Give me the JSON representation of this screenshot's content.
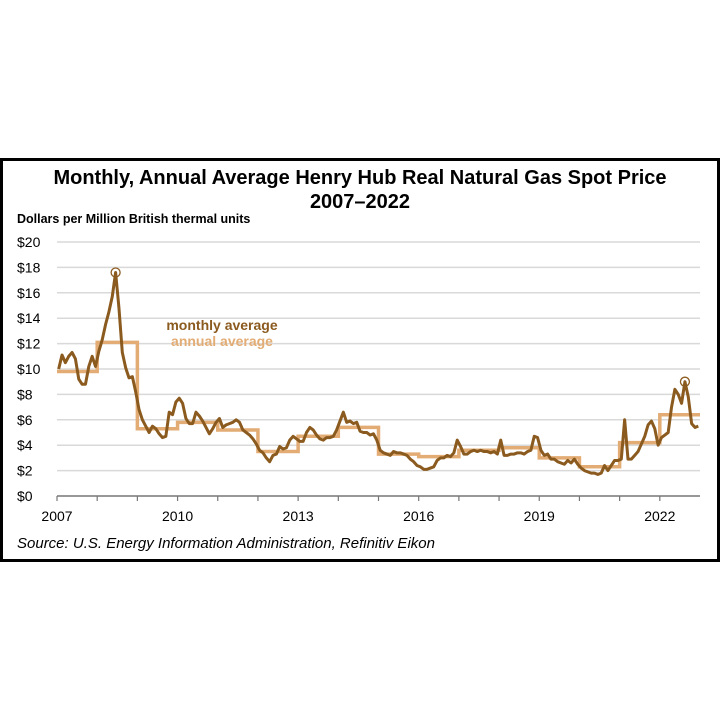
{
  "chart_data": {
    "type": "line",
    "title": "Monthly, Annual Average Henry Hub Real Natural Gas Spot Price",
    "subtitle": "2007–2022",
    "ylabel": "Dollars per Million British thermal units",
    "xlabel": "",
    "source": "Source: U.S. Energy Information Administration, Refinitiv Eikon",
    "xlim": [
      2007,
      2023
    ],
    "ylim": [
      0,
      20
    ],
    "x_tick_labels": [
      "2007",
      "2010",
      "2013",
      "2016",
      "2019",
      "2022"
    ],
    "y_tick_labels": [
      "$0",
      "$2",
      "$4",
      "$6",
      "$8",
      "$10",
      "$12",
      "$14",
      "$16",
      "$18",
      "$20"
    ],
    "grid": "horizontal",
    "legend": "center-left, inline text",
    "colors": {
      "monthly": "#8B5A1E",
      "annual": "#E2AC74"
    },
    "series": [
      {
        "name": "monthly average",
        "start": "2007-01",
        "frequency": "monthly",
        "values": [
          10.0,
          11.1,
          10.5,
          11.0,
          11.3,
          10.8,
          9.2,
          8.8,
          8.8,
          10.2,
          11.0,
          10.2,
          11.4,
          12.3,
          13.5,
          14.5,
          15.7,
          17.6,
          14.8,
          11.3,
          10.1,
          9.3,
          9.4,
          8.2,
          6.8,
          6.0,
          5.5,
          5.0,
          5.5,
          5.3,
          4.9,
          4.6,
          4.7,
          6.6,
          6.4,
          7.4,
          7.7,
          7.3,
          6.1,
          5.7,
          5.7,
          6.6,
          6.3,
          5.9,
          5.4,
          4.9,
          5.3,
          5.8,
          6.1,
          5.4,
          5.6,
          5.7,
          5.8,
          6.0,
          5.8,
          5.2,
          5.0,
          4.8,
          4.5,
          4.1,
          3.6,
          3.4,
          3.0,
          2.7,
          3.2,
          3.3,
          3.9,
          3.7,
          3.8,
          4.4,
          4.7,
          4.5,
          4.3,
          4.3,
          5.0,
          5.4,
          5.2,
          4.8,
          4.5,
          4.4,
          4.6,
          4.6,
          4.7,
          5.2,
          5.9,
          6.6,
          5.8,
          5.9,
          5.7,
          5.8,
          5.1,
          5.0,
          5.0,
          4.8,
          4.9,
          4.4,
          3.6,
          3.4,
          3.3,
          3.2,
          3.5,
          3.4,
          3.4,
          3.3,
          3.2,
          2.9,
          2.7,
          2.4,
          2.3,
          2.1,
          2.1,
          2.2,
          2.3,
          2.8,
          3.0,
          3.0,
          3.2,
          3.1,
          3.4,
          4.4,
          3.9,
          3.3,
          3.3,
          3.5,
          3.6,
          3.5,
          3.6,
          3.5,
          3.5,
          3.4,
          3.5,
          3.3,
          4.4,
          3.2,
          3.2,
          3.3,
          3.3,
          3.4,
          3.4,
          3.3,
          3.5,
          3.6,
          4.7,
          4.6,
          3.6,
          3.2,
          3.3,
          2.9,
          2.9,
          2.7,
          2.6,
          2.5,
          2.8,
          2.6,
          2.9,
          2.5,
          2.2,
          2.0,
          1.9,
          1.8,
          1.8,
          1.7,
          1.8,
          2.4,
          2.0,
          2.4,
          2.8,
          2.8,
          2.9,
          6.0,
          2.9,
          2.9,
          3.2,
          3.5,
          4.1,
          4.7,
          5.6,
          5.9,
          5.3,
          4.0,
          4.6,
          4.8,
          5.0,
          7.0,
          8.4,
          8.0,
          7.3,
          9.0,
          7.8,
          5.7,
          5.4,
          5.5
        ]
      },
      {
        "name": "annual average",
        "start": "2007",
        "frequency": "annual",
        "values": [
          9.8,
          12.1,
          5.3,
          5.8,
          5.2,
          3.5,
          4.7,
          5.4,
          3.3,
          3.1,
          3.6,
          3.8,
          3.0,
          2.3,
          4.2,
          6.4
        ]
      }
    ],
    "annotations": [
      {
        "type": "circle-marker",
        "x": "2008-06",
        "y": 17.6
      },
      {
        "type": "circle-marker",
        "x": "2022-08",
        "y": 9.0
      }
    ]
  }
}
